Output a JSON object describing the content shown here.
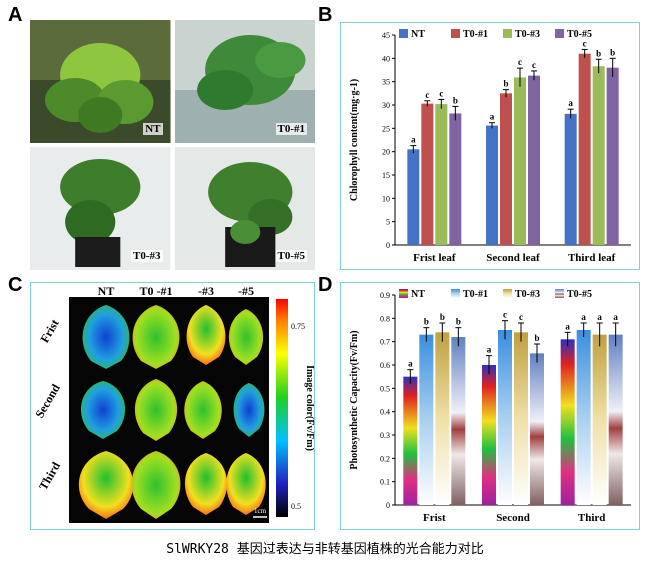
{
  "panels": {
    "a": "A",
    "b": "B",
    "c": "C",
    "d": "D"
  },
  "panel_a": {
    "photos": [
      {
        "label": "NT"
      },
      {
        "label": "T0-#1"
      },
      {
        "label": "T0-#3"
      },
      {
        "label": "T0-#5"
      }
    ]
  },
  "panel_c": {
    "columns": [
      "NT",
      "T0 -#1",
      "-#3",
      "-#5"
    ],
    "rows": [
      "Frist",
      "Second",
      "Third"
    ],
    "colorbar_label": "Image color(Fv/Fm)",
    "colorbar_ticks": [
      "0.75",
      "0.5"
    ],
    "scale_bar": "1cm"
  },
  "caption": "SlWRKY28 基因过表达与非转基因植株的光合能力对比",
  "colors": {
    "NT": "#4472c4",
    "T0-#1": "#c0504d",
    "T0-#3": "#9bbb59",
    "T0-#5": "#8064a2",
    "frame": "#7fd0d8"
  },
  "chart_data": [
    {
      "type": "bar",
      "panel": "B",
      "ylabel": "Chlorophyll content(mg·g-1)",
      "ylim": [
        0,
        45
      ],
      "yticks": [
        0,
        5,
        10,
        15,
        20,
        25,
        30,
        35,
        40,
        45
      ],
      "categories": [
        "Frist leaf",
        "Second leaf",
        "Third leaf"
      ],
      "legend": "top",
      "series": [
        {
          "name": "NT",
          "values": [
            20.5,
            25.6,
            28.1
          ],
          "errors": [
            0.8,
            0.6,
            1.0
          ],
          "letters": [
            "a",
            "a",
            "a"
          ]
        },
        {
          "name": "T0-#1",
          "values": [
            30.3,
            32.5,
            41.0
          ],
          "errors": [
            0.6,
            0.8,
            0.9
          ],
          "letters": [
            "c",
            "b",
            "c"
          ]
        },
        {
          "name": "T0-#3",
          "values": [
            30.2,
            35.9,
            38.3
          ],
          "errors": [
            1.0,
            2.0,
            1.5
          ],
          "letters": [
            "c",
            "c",
            "b"
          ]
        },
        {
          "name": "T0-#5",
          "values": [
            28.2,
            36.3,
            38.0
          ],
          "errors": [
            1.5,
            1.0,
            2.0
          ],
          "letters": [
            "b",
            "c",
            "b"
          ]
        }
      ]
    },
    {
      "type": "bar",
      "panel": "D",
      "ylabel": "Photosynthetic Capacity(Fv/Fm)",
      "ylim": [
        0,
        0.9
      ],
      "yticks": [
        "0",
        "0.1",
        "0.2",
        "0.3",
        "0.4",
        "0.5",
        "0.6",
        "0.7",
        "0.8",
        "0.9"
      ],
      "categories": [
        "Frist",
        "Second",
        "Third"
      ],
      "legend": "top",
      "series": [
        {
          "name": "NT",
          "values": [
            0.55,
            0.6,
            0.71
          ],
          "errors": [
            0.03,
            0.04,
            0.03
          ],
          "letters": [
            "a",
            "a",
            "a"
          ]
        },
        {
          "name": "T0-#1",
          "values": [
            0.73,
            0.75,
            0.75
          ],
          "errors": [
            0.03,
            0.04,
            0.03
          ],
          "letters": [
            "b",
            "c",
            "a"
          ]
        },
        {
          "name": "T0-#3",
          "values": [
            0.74,
            0.74,
            0.73
          ],
          "errors": [
            0.04,
            0.04,
            0.05
          ],
          "letters": [
            "b",
            "c",
            "a"
          ]
        },
        {
          "name": "T0-#5",
          "values": [
            0.72,
            0.65,
            0.73
          ],
          "errors": [
            0.04,
            0.04,
            0.05
          ],
          "letters": [
            "b",
            "b",
            "a"
          ]
        }
      ]
    }
  ]
}
